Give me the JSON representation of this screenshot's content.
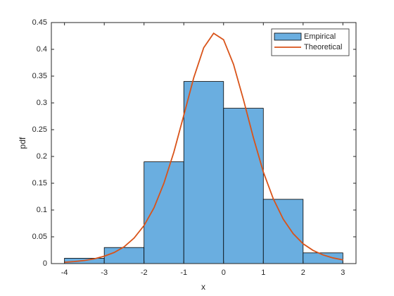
{
  "chart_data": {
    "type": "histogram",
    "xlabel": "x",
    "ylabel": "pdf",
    "bins": [
      -4,
      -3,
      -2,
      -1,
      0,
      1,
      2,
      3
    ],
    "series": [
      {
        "name": "Empirical",
        "type": "histogram",
        "color": "#6aaee0",
        "values": [
          0.01,
          0.03,
          0.19,
          0.34,
          0.29,
          0.12,
          0.02
        ]
      },
      {
        "name": "Theoretical",
        "type": "line",
        "color": "#d95319",
        "x": [
          -4,
          -3.75,
          -3.5,
          -3.25,
          -3,
          -2.75,
          -2.5,
          -2.25,
          -2,
          -1.75,
          -1.5,
          -1.25,
          -1,
          -0.75,
          -0.5,
          -0.25,
          0,
          0.25,
          0.5,
          0.75,
          1,
          1.25,
          1.5,
          1.75,
          2,
          2.25,
          2.5,
          2.75,
          3
        ],
        "values": [
          0.0025,
          0.0038,
          0.0058,
          0.0089,
          0.0138,
          0.0207,
          0.0314,
          0.0477,
          0.071,
          0.104,
          0.15,
          0.208,
          0.277,
          0.347,
          0.403,
          0.43,
          0.418,
          0.372,
          0.306,
          0.235,
          0.171,
          0.121,
          0.083,
          0.0559,
          0.037,
          0.0246,
          0.0162,
          0.0106,
          0.0069
        ]
      }
    ],
    "xlim": [
      -4.33,
      3.33
    ],
    "ylim": [
      0,
      0.45
    ],
    "xticks": [
      -4,
      -3,
      -2,
      -1,
      0,
      1,
      2,
      3
    ],
    "yticks": [
      0,
      0.05,
      0.1,
      0.15,
      0.2,
      0.25,
      0.3,
      0.35,
      0.4,
      0.45
    ],
    "legend": "top-right"
  }
}
